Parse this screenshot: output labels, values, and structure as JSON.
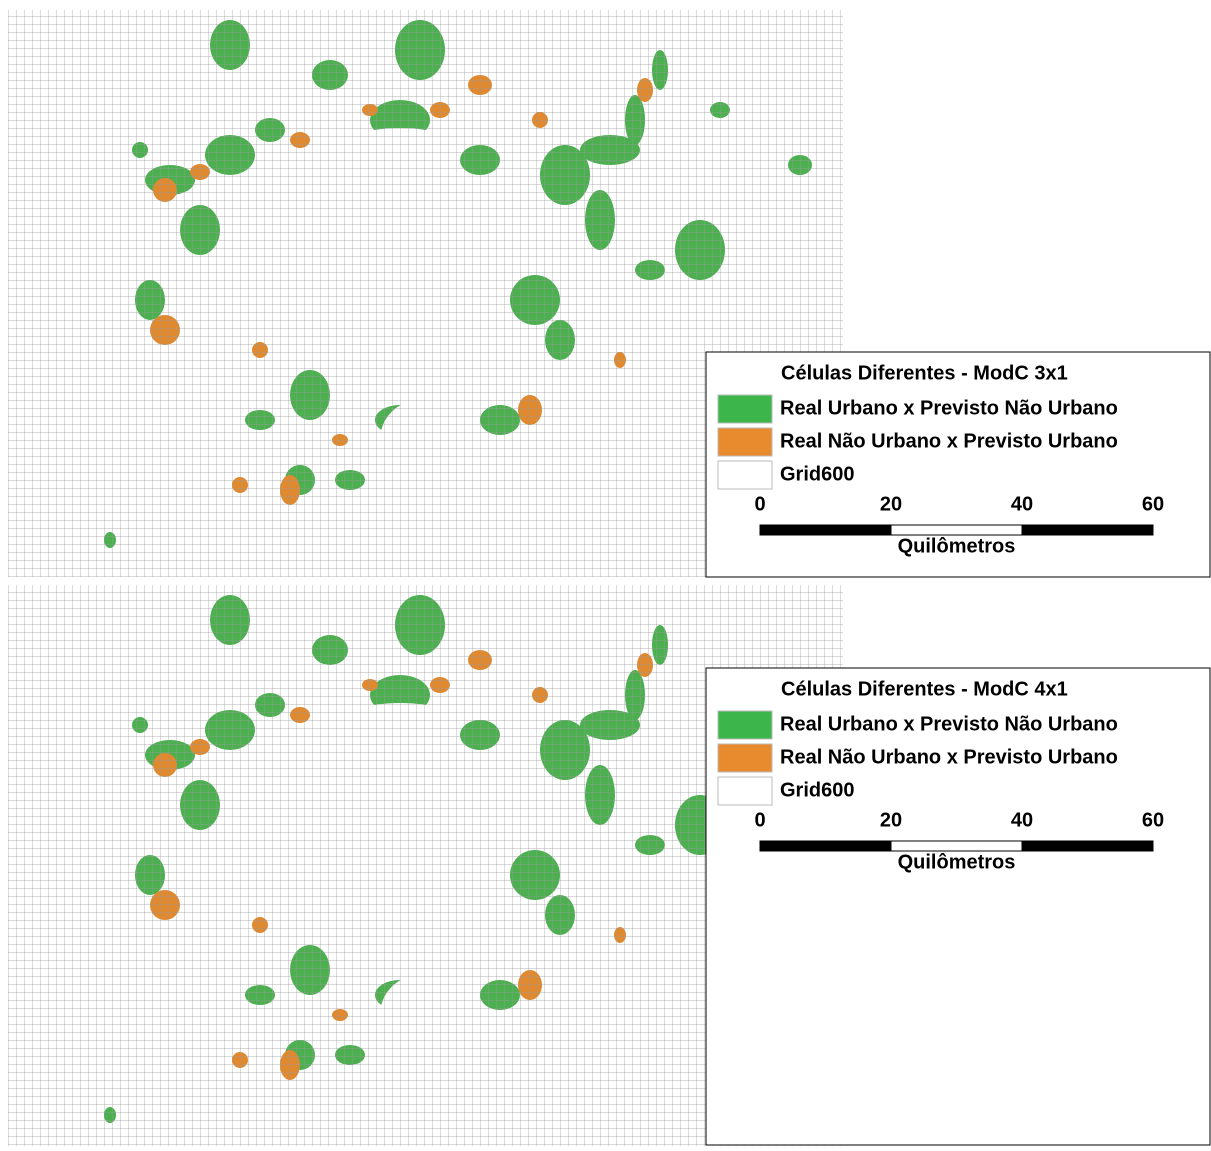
{
  "maps": [
    {
      "legend": {
        "title": "Células Diferentes - ModC  3x1",
        "items": [
          "Real Urbano x Previsto Não Urbano",
          "Real Não Urbano x Previsto Urbano",
          "Grid600"
        ],
        "scale": {
          "ticks": [
            0,
            20,
            40,
            60
          ],
          "unit": "Quilômetros"
        }
      }
    },
    {
      "legend": {
        "title": "Células Diferentes - ModC 4x1",
        "items": [
          "Real Urbano x Previsto Não Urbano",
          "Real Não Urbano x Previsto Urbano",
          "Grid600"
        ],
        "scale": {
          "ticks": [
            0,
            20,
            40,
            60
          ],
          "unit": "Quilômetros"
        }
      }
    }
  ]
}
